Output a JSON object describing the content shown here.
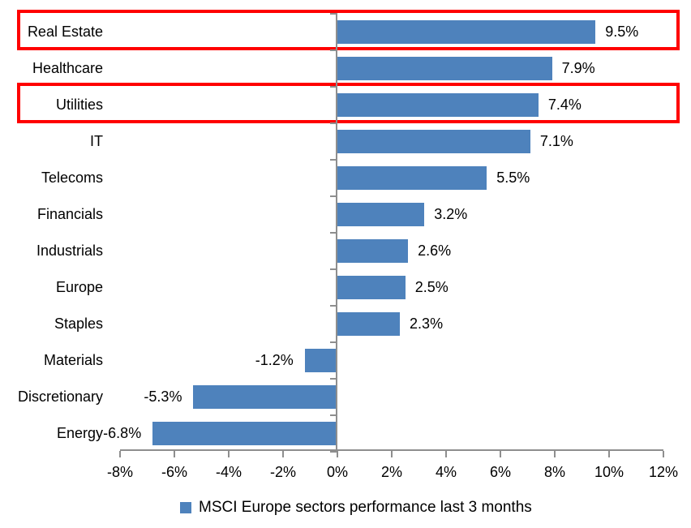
{
  "chart_data": {
    "type": "bar",
    "orientation": "horizontal",
    "title": "",
    "categories": [
      "Real Estate",
      "Healthcare",
      "Utilities",
      "IT",
      "Telecoms",
      "Financials",
      "Industrials",
      "Europe",
      "Staples",
      "Materials",
      "Discretionary",
      "Energy"
    ],
    "values": [
      9.5,
      7.9,
      7.4,
      7.1,
      5.5,
      3.2,
      2.6,
      2.5,
      2.3,
      -1.2,
      -5.3,
      -6.8
    ],
    "value_labels": [
      "9.5%",
      "7.9%",
      "7.4%",
      "7.1%",
      "5.5%",
      "3.2%",
      "2.6%",
      "2.5%",
      "2.3%",
      "-1.2%",
      "-5.3%",
      "-6.8%"
    ],
    "x_ticks": [
      "-8%",
      "-6%",
      "-4%",
      "-2%",
      "0%",
      "2%",
      "4%",
      "6%",
      "8%",
      "10%",
      "12%"
    ],
    "xlim": [
      -8,
      12
    ],
    "tick_step": 2,
    "grid": "off",
    "legend_position": "bottom",
    "highlighted_categories": [
      "Real Estate",
      "Utilities"
    ],
    "colors": {
      "bar": "#4E82BC",
      "highlight_box": "#FF0000",
      "axis": "#8E8E8E",
      "text": "#000000"
    }
  },
  "legend": {
    "marker_color": "#4E82BC",
    "label": "MSCI Europe sectors performance last 3 months"
  }
}
